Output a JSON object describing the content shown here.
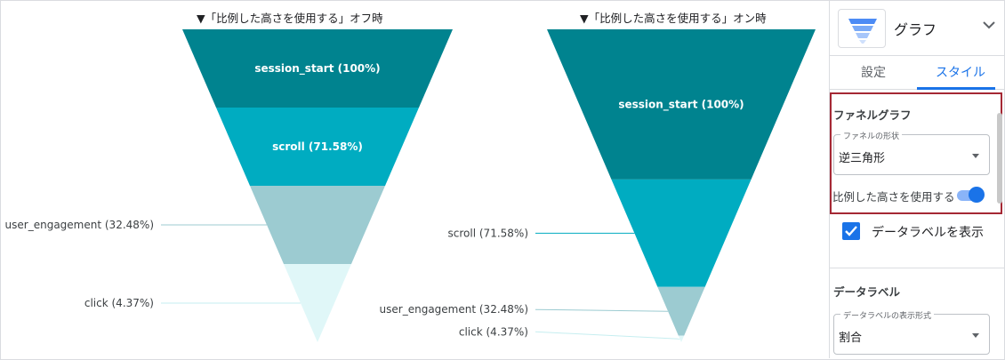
{
  "titles": {
    "left": "▼「比例した高さを使用する」オフ時",
    "right": "▼「比例した高さを使用する」オン時"
  },
  "chart_data": [
    {
      "type": "funnel",
      "title": "▼「比例した高さを使用する」オフ時",
      "proportional_height": false,
      "categories": [
        "session_start",
        "scroll",
        "user_engagement",
        "click"
      ],
      "values": [
        100,
        71.58,
        32.48,
        4.37
      ],
      "unit": "%",
      "labels": [
        "session_start (100%)",
        "scroll (71.58%)",
        "user_engagement (32.48%)",
        "click (4.37%)"
      ],
      "label_placement": [
        "inside",
        "inside",
        "outside-left",
        "outside-left"
      ],
      "colors": [
        "#00838f",
        "#00acc1",
        "#9ccbd1",
        "#e0f7f8"
      ]
    },
    {
      "type": "funnel",
      "title": "▼「比例した高さを使用する」オン時",
      "proportional_height": true,
      "categories": [
        "session_start",
        "scroll",
        "user_engagement",
        "click"
      ],
      "values": [
        100,
        71.58,
        32.48,
        4.37
      ],
      "unit": "%",
      "labels": [
        "session_start (100%)",
        "scroll (71.58%)",
        "user_engagement (32.48%)",
        "click (4.37%)"
      ],
      "label_placement": [
        "inside",
        "outside-left",
        "outside-left",
        "outside-left"
      ],
      "colors": [
        "#00838f",
        "#00acc1",
        "#9ccbd1",
        "#e0f7f8"
      ]
    }
  ],
  "panel": {
    "chart_type_label": "グラフ",
    "chart_icon": "funnel-chart-icon",
    "tabs": {
      "setup": "設定",
      "style": "スタイル",
      "active": "style"
    },
    "funnel_section": {
      "title": "ファネルグラフ",
      "shape_legend": "ファネルの形状",
      "shape_value": "逆三角形",
      "proportional_label": "比例した高さを使用する",
      "proportional_on": true,
      "highlight_color": "#a52834"
    },
    "show_labels": {
      "label": "データラベルを表示",
      "checked": true
    },
    "data_label_section": {
      "title": "データラベル",
      "format_legend": "データラベルの表示形式",
      "format_value": "割合"
    },
    "accent_color": "#1a73e8"
  }
}
